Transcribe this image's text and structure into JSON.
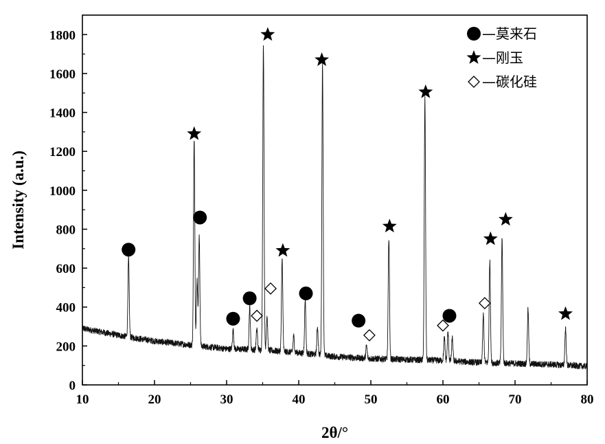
{
  "chart_data": {
    "type": "line",
    "title": "",
    "xlabel": "2θ/°",
    "ylabel": "Intensity (a.u.)",
    "xlim": [
      10,
      80
    ],
    "ylim": [
      0,
      1900
    ],
    "xticks": [
      10,
      20,
      30,
      40,
      50,
      60,
      70,
      80
    ],
    "yticks": [
      0,
      200,
      400,
      600,
      800,
      1000,
      1200,
      1400,
      1600,
      1800
    ],
    "grid": false,
    "legend_position": "top-right",
    "legend": [
      {
        "symbol": "circle",
        "label": "—莫来石"
      },
      {
        "symbol": "star",
        "label": "—刚玉"
      },
      {
        "symbol": "diamond",
        "label": "—碳化硅"
      }
    ],
    "baseline": [
      [
        10,
        290
      ],
      [
        15,
        255
      ],
      [
        20,
        225
      ],
      [
        25,
        205
      ],
      [
        30,
        185
      ],
      [
        35,
        180
      ],
      [
        40,
        165
      ],
      [
        45,
        145
      ],
      [
        50,
        135
      ],
      [
        55,
        130
      ],
      [
        60,
        125
      ],
      [
        65,
        115
      ],
      [
        70,
        110
      ],
      [
        75,
        105
      ],
      [
        80,
        95
      ]
    ],
    "peaks": [
      {
        "x": 16.4,
        "y": 650
      },
      {
        "x": 25.5,
        "y": 1270
      },
      {
        "x": 25.9,
        "y": 540
      },
      {
        "x": 26.2,
        "y": 760
      },
      {
        "x": 30.9,
        "y": 280
      },
      {
        "x": 33.2,
        "y": 400
      },
      {
        "x": 34.2,
        "y": 290
      },
      {
        "x": 35.1,
        "y": 1750
      },
      {
        "x": 35.6,
        "y": 350
      },
      {
        "x": 37.7,
        "y": 650
      },
      {
        "x": 39.3,
        "y": 250
      },
      {
        "x": 40.9,
        "y": 440
      },
      {
        "x": 42.6,
        "y": 300
      },
      {
        "x": 43.3,
        "y": 1640
      },
      {
        "x": 49.4,
        "y": 200
      },
      {
        "x": 52.5,
        "y": 760
      },
      {
        "x": 57.5,
        "y": 1470
      },
      {
        "x": 60.2,
        "y": 240
      },
      {
        "x": 60.7,
        "y": 270
      },
      {
        "x": 61.3,
        "y": 240
      },
      {
        "x": 65.6,
        "y": 360
      },
      {
        "x": 66.5,
        "y": 640
      },
      {
        "x": 68.2,
        "y": 750
      },
      {
        "x": 71.8,
        "y": 390
      },
      {
        "x": 77.0,
        "y": 290
      }
    ],
    "markers": [
      {
        "symbol": "circle",
        "x": 16.4,
        "y": 695
      },
      {
        "symbol": "star",
        "x": 25.5,
        "y": 1290
      },
      {
        "symbol": "circle",
        "x": 26.3,
        "y": 860
      },
      {
        "symbol": "circle",
        "x": 30.9,
        "y": 340
      },
      {
        "symbol": "circle",
        "x": 33.2,
        "y": 445
      },
      {
        "symbol": "diamond",
        "x": 34.2,
        "y": 355
      },
      {
        "symbol": "star",
        "x": 35.7,
        "y": 1800
      },
      {
        "symbol": "diamond",
        "x": 36.1,
        "y": 495
      },
      {
        "symbol": "star",
        "x": 37.8,
        "y": 690
      },
      {
        "symbol": "circle",
        "x": 41.0,
        "y": 470
      },
      {
        "symbol": "star",
        "x": 43.2,
        "y": 1670
      },
      {
        "symbol": "circle",
        "x": 48.3,
        "y": 330
      },
      {
        "symbol": "diamond",
        "x": 49.8,
        "y": 255
      },
      {
        "symbol": "star",
        "x": 52.6,
        "y": 815
      },
      {
        "symbol": "star",
        "x": 57.6,
        "y": 1505
      },
      {
        "symbol": "diamond",
        "x": 60.0,
        "y": 305
      },
      {
        "symbol": "circle",
        "x": 60.9,
        "y": 355
      },
      {
        "symbol": "diamond",
        "x": 65.8,
        "y": 420
      },
      {
        "symbol": "star",
        "x": 66.6,
        "y": 750
      },
      {
        "symbol": "star",
        "x": 68.7,
        "y": 850
      },
      {
        "symbol": "star",
        "x": 77.0,
        "y": 365
      }
    ]
  }
}
